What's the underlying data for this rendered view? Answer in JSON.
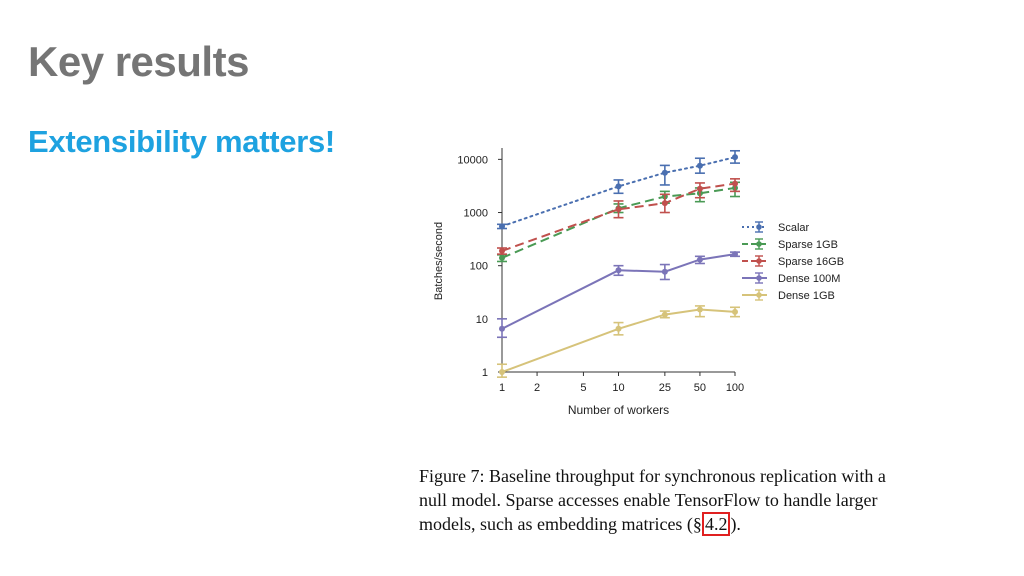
{
  "slide": {
    "title": "Key results",
    "subtitle": "Extensibility matters!"
  },
  "caption": {
    "pre": "Figure 7: Baseline throughput for synchronous replication with a null model. Sparse accesses enable TensorFlow to handle larger models, such as embedding matrices (§",
    "ref": "4.2",
    "post": ").",
    "highlight_color": "#e02020"
  },
  "chart_data": {
    "type": "line",
    "xlabel": "Number of workers",
    "ylabel": "Batches/second",
    "x_scale": "log",
    "y_scale": "log",
    "xlim": [
      1,
      100
    ],
    "ylim": [
      1,
      15000
    ],
    "x_ticks": [
      1,
      2,
      5,
      10,
      25,
      50,
      100
    ],
    "y_ticks": [
      1,
      10,
      100,
      1000,
      10000
    ],
    "x": [
      1,
      10,
      25,
      50,
      100
    ],
    "grid": false,
    "legend_position": "right",
    "series": [
      {
        "name": "Scalar",
        "color": "#4a6fb0",
        "dash": "dotted",
        "marker": "circle",
        "values": [
          550,
          3100,
          5600,
          7600,
          11000
        ],
        "err_low": [
          500,
          2300,
          3300,
          5500,
          8500
        ],
        "err_high": [
          600,
          4100,
          7700,
          10500,
          14500
        ]
      },
      {
        "name": "Sparse 1GB",
        "color": "#4a9a55",
        "dash": "dashed",
        "marker": "circle",
        "values": [
          140,
          1200,
          2000,
          2300,
          2900
        ],
        "err_low": [
          120,
          1000,
          1500,
          1600,
          2000
        ],
        "err_high": [
          160,
          1450,
          2500,
          2900,
          3700
        ]
      },
      {
        "name": "Sparse 16GB",
        "color": "#c0504d",
        "dash": "dashed",
        "marker": "circle",
        "values": [
          190,
          1150,
          1500,
          2800,
          3500
        ],
        "err_low": [
          165,
          800,
          1000,
          1900,
          2500
        ],
        "err_high": [
          215,
          1650,
          2200,
          3600,
          4300
        ]
      },
      {
        "name": "Dense 100M",
        "color": "#7b74b8",
        "dash": "solid",
        "marker": "circle",
        "values": [
          6.5,
          82,
          77,
          130,
          165
        ],
        "err_low": [
          4.5,
          66,
          55,
          110,
          150
        ],
        "err_high": [
          10,
          100,
          105,
          150,
          180
        ]
      },
      {
        "name": "Dense 1GB",
        "color": "#d6c37a",
        "dash": "solid",
        "marker": "circle",
        "values": [
          1,
          6.5,
          12,
          15,
          13.5
        ],
        "err_low": [
          0.8,
          5,
          10.5,
          11,
          11
        ],
        "err_high": [
          1.4,
          8.5,
          14,
          17.5,
          16.5
        ]
      }
    ]
  }
}
